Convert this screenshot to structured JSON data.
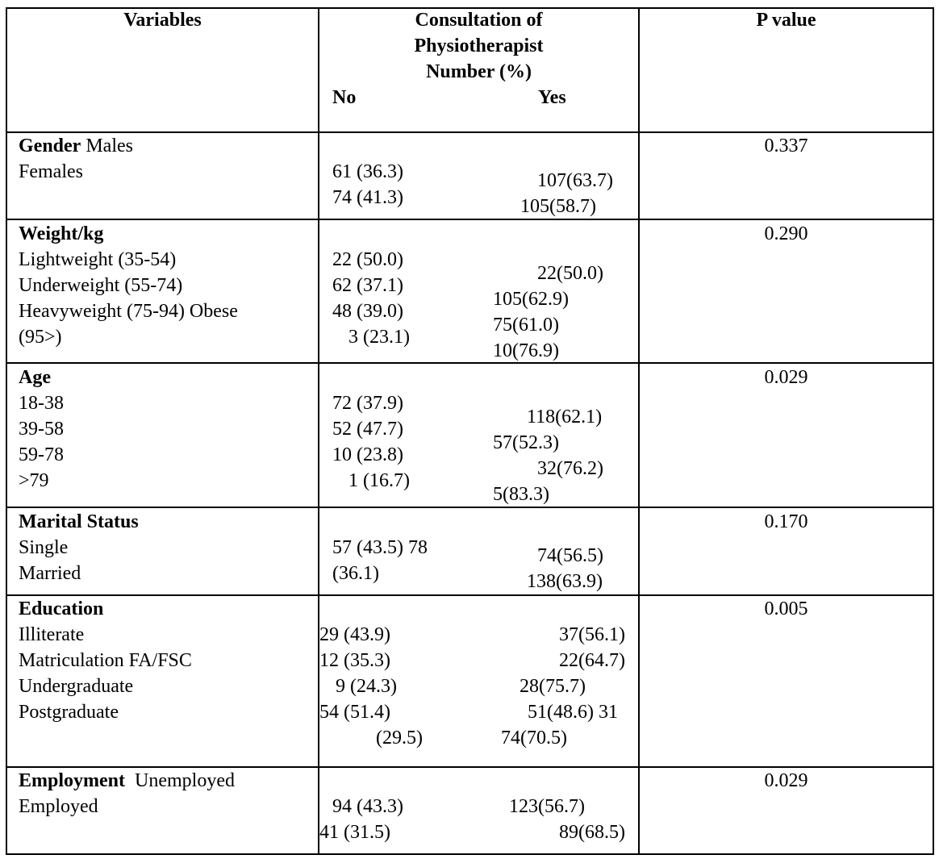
{
  "header": {
    "variables": "Variables",
    "consultation_line1": "Consultation of",
    "consultation_line2": "Physiotherapist",
    "consultation_line3": "Number (%)",
    "no": "No",
    "yes": "Yes",
    "p_value": "P value"
  },
  "gender": {
    "title": "Gender",
    "males": " Males",
    "females": "Females",
    "no_1": "61 (36.3)",
    "no_2": "74 (41.3)",
    "yes_1": "107(63.7)",
    "yes_2": "105(58.7)",
    "p": "0.337"
  },
  "weight": {
    "title": "Weight/kg",
    "rows": [
      "Lightweight (35-54)",
      "Underweight (55-74)",
      "Heavyweight (75-94) Obese",
      "(95>)"
    ],
    "no": [
      "22 (50.0)",
      "62 (37.1)",
      "48 (39.0)",
      "3 (23.1)"
    ],
    "yes": [
      "22(50.0)",
      "105(62.9)",
      "75(61.0)",
      "10(76.9)"
    ],
    "p": "0.290"
  },
  "age": {
    "title": "Age",
    "rows": [
      "18-38",
      "39-58",
      "59-78",
      ">79"
    ],
    "no": [
      "72 (37.9)",
      "52 (47.7)",
      "10 (23.8)",
      "1 (16.7)"
    ],
    "yes": [
      "118(62.1)",
      "57(52.3)",
      "32(76.2)",
      "5(83.3)"
    ],
    "p": "0.029"
  },
  "marital": {
    "title": "Marital Status",
    "rows": [
      "Single",
      "Married"
    ],
    "no": [
      "57 (43.5) 78",
      "(36.1)"
    ],
    "yes": [
      "74(56.5)",
      "138(63.9)"
    ],
    "p": "0.170"
  },
  "education": {
    "title": "Education",
    "rows": [
      "Illiterate",
      "Matriculation FA/FSC",
      "Undergraduate",
      "Postgraduate"
    ],
    "no": [
      "29 (43.9)",
      "12 (35.3)",
      "9 (24.3)",
      "54 (51.4)",
      "(29.5)"
    ],
    "yes": [
      "37(56.1)",
      "22(64.7)",
      "28(75.7)",
      "51(48.6) 31",
      "74(70.5)"
    ],
    "p": "0.005"
  },
  "employment": {
    "title": "Employment",
    "unemployed": "  Unemployed",
    "employed": "Employed",
    "no": [
      "94 (43.3)",
      "41 (31.5)"
    ],
    "yes": [
      "123(56.7)",
      "89(68.5)"
    ],
    "p": "0.029"
  }
}
